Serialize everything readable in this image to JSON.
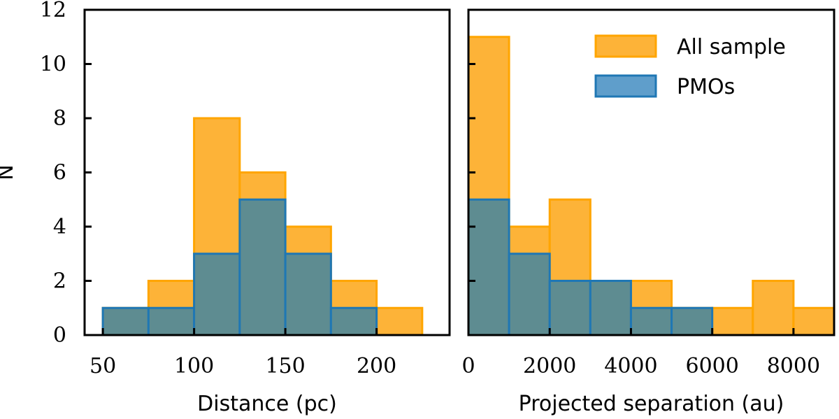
{
  "chart_data": [
    {
      "type": "bar",
      "subtype": "histogram",
      "xlabel": "Distance (pc)",
      "ylabel": "N",
      "xlim": [
        40,
        240
      ],
      "ylim": [
        0,
        12
      ],
      "xticks": [
        50,
        100,
        150,
        200
      ],
      "yticks": [
        0,
        2,
        4,
        6,
        8,
        10,
        12
      ],
      "bin_edges": [
        50,
        75,
        100,
        125,
        150,
        175,
        200,
        225
      ],
      "series": [
        {
          "name": "All sample",
          "color": "#FDB338",
          "edge_color": "#FFA500",
          "values": [
            1,
            2,
            8,
            6,
            4,
            2,
            1
          ]
        },
        {
          "name": "PMOs",
          "color": "#5E8C91",
          "edge_color": "#1F77B4",
          "values": [
            1,
            1,
            3,
            5,
            3,
            1,
            0
          ]
        }
      ]
    },
    {
      "type": "bar",
      "subtype": "histogram",
      "xlabel": "Projected separation (au)",
      "ylabel": "",
      "xlim": [
        0,
        9000
      ],
      "ylim": [
        0,
        12
      ],
      "xticks": [
        0,
        2000,
        4000,
        6000,
        8000
      ],
      "yticks": [
        0,
        2,
        4,
        6,
        8,
        10,
        12
      ],
      "bin_edges": [
        0,
        1000,
        2000,
        3000,
        4000,
        5000,
        6000,
        7000,
        8000,
        9000
      ],
      "legend": {
        "placement": "top-right",
        "entries": [
          "All sample",
          "PMOs"
        ]
      },
      "series": [
        {
          "name": "All sample",
          "color": "#FDB338",
          "edge_color": "#FFA500",
          "values": [
            11,
            4,
            5,
            2,
            2,
            1,
            1,
            2,
            1
          ]
        },
        {
          "name": "PMOs",
          "color": "#5E8C91",
          "edge_color": "#1F77B4",
          "values": [
            5,
            3,
            2,
            2,
            1,
            1,
            0,
            0,
            0
          ]
        }
      ]
    }
  ],
  "legend_swatch_colors": {
    "All sample": "#FDB338",
    "PMOs": "#5F9ECB"
  }
}
